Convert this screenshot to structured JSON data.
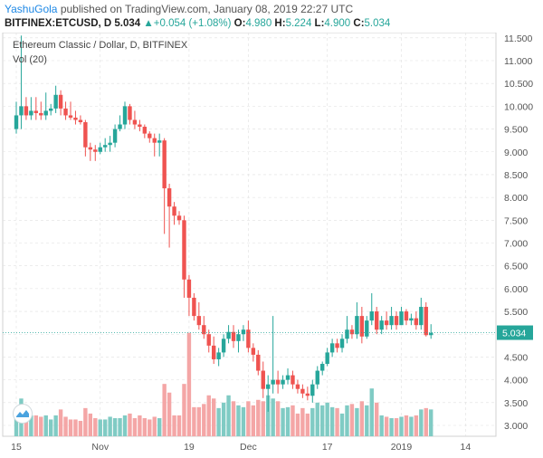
{
  "header": {
    "author": "YashuGola",
    "published_text": " published on TradingView.com, January 08, 2019 22:27 UTC",
    "symbol": "BITFINEX:ETCUSD, D",
    "last": "5.034",
    "arrow": "▲",
    "change": "+0.054 (+1.08%)",
    "o_label": "O:",
    "o_value": "4.980",
    "h_label": "H:",
    "h_value": "5.224",
    "l_label": "L:",
    "l_value": "4.900",
    "c_label": "C:",
    "c_value": "5.034"
  },
  "chart_title": "Ethereum Classic / Dollar, D, BITFINEX",
  "volume_label": "Vol (20)",
  "colors": {
    "up": "#26a69a",
    "down": "#ef5350",
    "up_vol": "#80cbc4",
    "down_vol": "#f4a6a6",
    "price_line": "#26a69a",
    "grid": "#e0e0e0"
  },
  "chart_data": {
    "type": "candlestick",
    "y_ticks": [
      "11.500",
      "11.000",
      "10.500",
      "10.000",
      "9.500",
      "9.000",
      "8.500",
      "8.000",
      "7.500",
      "7.000",
      "6.500",
      "6.000",
      "5.500",
      "5.000",
      "4.500",
      "4.000",
      "3.500",
      "3.000"
    ],
    "ylim": [
      2.9,
      11.6
    ],
    "x_ticks": [
      {
        "label": "15",
        "day": 0
      },
      {
        "label": "Nov",
        "day": 17
      },
      {
        "label": "19",
        "day": 35
      },
      {
        "label": "Dec",
        "day": 47
      },
      {
        "label": "17",
        "day": 63
      },
      {
        "label": "2019",
        "day": 78
      },
      {
        "label": "14",
        "day": 91
      }
    ],
    "x_range": [
      -1,
      97
    ],
    "last_price": "5.034",
    "last_price_value": 5.034,
    "candles": [
      [
        9.5,
        10.1,
        9.4,
        9.8,
        3.32
      ],
      [
        9.8,
        11.55,
        9.5,
        10.0,
        3.59
      ],
      [
        10.0,
        10.2,
        9.7,
        9.8,
        3.3
      ],
      [
        9.8,
        10.2,
        9.7,
        9.9,
        3.22
      ],
      [
        9.9,
        10.2,
        9.7,
        9.85,
        3.22
      ],
      [
        9.85,
        10.1,
        9.7,
        9.8,
        3.19
      ],
      [
        9.8,
        10.3,
        9.7,
        9.9,
        3.22
      ],
      [
        9.9,
        10.05,
        9.8,
        9.95,
        3.13
      ],
      [
        9.95,
        10.45,
        9.85,
        10.25,
        3.22
      ],
      [
        10.25,
        10.35,
        9.8,
        9.95,
        3.35
      ],
      [
        9.95,
        10.1,
        9.7,
        9.8,
        3.19
      ],
      [
        9.8,
        10.1,
        9.7,
        9.75,
        3.13
      ],
      [
        9.75,
        9.9,
        9.6,
        9.7,
        3.13
      ],
      [
        9.7,
        9.8,
        9.6,
        9.65,
        3.1
      ],
      [
        9.65,
        9.7,
        8.9,
        9.1,
        3.38
      ],
      [
        9.1,
        9.2,
        8.8,
        9.05,
        3.26
      ],
      [
        9.05,
        9.15,
        8.8,
        9.0,
        3.16
      ],
      [
        9.0,
        9.2,
        8.95,
        9.1,
        3.13
      ],
      [
        9.1,
        9.3,
        9.0,
        9.15,
        3.13
      ],
      [
        9.15,
        9.35,
        9.0,
        9.2,
        3.19
      ],
      [
        9.2,
        9.6,
        9.1,
        9.5,
        3.16
      ],
      [
        9.5,
        9.8,
        9.45,
        9.6,
        3.16
      ],
      [
        9.6,
        10.1,
        9.5,
        10.0,
        3.22
      ],
      [
        10.0,
        10.05,
        9.6,
        9.7,
        3.26
      ],
      [
        9.7,
        9.9,
        9.5,
        9.6,
        3.16
      ],
      [
        9.6,
        9.7,
        9.45,
        9.55,
        3.22
      ],
      [
        9.55,
        9.6,
        9.3,
        9.4,
        3.16
      ],
      [
        9.4,
        9.45,
        9.2,
        9.3,
        3.13
      ],
      [
        9.3,
        9.4,
        8.9,
        9.2,
        3.19
      ],
      [
        9.2,
        9.4,
        8.9,
        9.25,
        3.16
      ],
      [
        9.25,
        9.3,
        7.2,
        8.2,
        3.91
      ],
      [
        8.2,
        8.3,
        6.9,
        7.8,
        3.72
      ],
      [
        7.8,
        7.9,
        7.4,
        7.6,
        3.22
      ],
      [
        7.6,
        7.7,
        7.4,
        7.5,
        3.22
      ],
      [
        7.5,
        7.6,
        5.8,
        6.2,
        3.91
      ],
      [
        6.2,
        6.3,
        5.4,
        5.8,
        5.03
      ],
      [
        5.8,
        5.9,
        5.3,
        5.4,
        3.4
      ],
      [
        5.4,
        5.7,
        5.1,
        5.2,
        3.4
      ],
      [
        5.2,
        5.4,
        4.9,
        5.0,
        3.47
      ],
      [
        5.0,
        5.1,
        4.6,
        4.75,
        3.66
      ],
      [
        4.75,
        4.95,
        4.35,
        4.45,
        3.59
      ],
      [
        4.45,
        4.7,
        4.3,
        4.6,
        3.38
      ],
      [
        4.6,
        5.0,
        4.5,
        4.9,
        3.5
      ],
      [
        4.9,
        5.2,
        4.8,
        5.05,
        3.66
      ],
      [
        5.05,
        5.2,
        4.7,
        4.85,
        3.53
      ],
      [
        4.85,
        5.1,
        4.6,
        5.0,
        3.44
      ],
      [
        5.0,
        5.2,
        4.85,
        5.1,
        3.4
      ],
      [
        5.1,
        5.3,
        4.6,
        4.7,
        3.53
      ],
      [
        4.7,
        4.8,
        4.4,
        4.55,
        3.44
      ],
      [
        4.55,
        4.65,
        4.1,
        4.2,
        3.56
      ],
      [
        4.2,
        4.4,
        3.6,
        3.8,
        3.53
      ],
      [
        3.8,
        4.1,
        3.3,
        3.9,
        3.66
      ],
      [
        3.9,
        5.4,
        3.7,
        4.0,
        3.59
      ],
      [
        4.0,
        4.2,
        3.7,
        3.9,
        3.53
      ],
      [
        3.9,
        4.1,
        3.8,
        4.0,
        3.38
      ],
      [
        4.0,
        4.25,
        3.9,
        4.1,
        3.4
      ],
      [
        4.1,
        4.2,
        3.8,
        3.9,
        3.44
      ],
      [
        3.9,
        4.0,
        3.7,
        3.8,
        3.26
      ],
      [
        3.8,
        3.9,
        3.6,
        3.7,
        3.38
      ],
      [
        3.7,
        3.85,
        3.55,
        3.65,
        3.26
      ],
      [
        3.65,
        4.0,
        3.5,
        3.9,
        3.38
      ],
      [
        3.9,
        4.3,
        3.8,
        4.2,
        3.5
      ],
      [
        4.2,
        4.4,
        4.1,
        4.35,
        3.44
      ],
      [
        4.35,
        4.7,
        4.3,
        4.6,
        3.5
      ],
      [
        4.6,
        4.9,
        4.5,
        4.8,
        3.4
      ],
      [
        4.8,
        4.9,
        4.6,
        4.7,
        3.38
      ],
      [
        4.7,
        5.0,
        4.6,
        4.9,
        3.26
      ],
      [
        4.9,
        5.4,
        4.8,
        5.1,
        3.44
      ],
      [
        5.1,
        5.2,
        4.9,
        5.0,
        3.47
      ],
      [
        5.0,
        5.7,
        4.9,
        5.4,
        3.38
      ],
      [
        5.4,
        5.6,
        4.8,
        4.95,
        3.53
      ],
      [
        4.95,
        5.4,
        4.9,
        5.3,
        3.44
      ],
      [
        5.3,
        5.9,
        5.2,
        5.5,
        3.81
      ],
      [
        5.5,
        5.6,
        5.0,
        5.1,
        3.5
      ],
      [
        5.1,
        5.4,
        5.0,
        5.3,
        3.22
      ],
      [
        5.3,
        5.5,
        5.1,
        5.2,
        3.19
      ],
      [
        5.2,
        5.6,
        5.1,
        5.4,
        3.16
      ],
      [
        5.4,
        5.5,
        5.1,
        5.2,
        3.16
      ],
      [
        5.2,
        5.6,
        5.2,
        5.5,
        3.19
      ],
      [
        5.5,
        5.55,
        5.2,
        5.3,
        3.22
      ],
      [
        5.3,
        5.45,
        5.2,
        5.35,
        3.19
      ],
      [
        5.35,
        5.5,
        5.1,
        5.2,
        3.22
      ],
      [
        5.2,
        5.8,
        5.1,
        5.6,
        3.35
      ],
      [
        5.6,
        5.7,
        4.95,
        4.98,
        3.38
      ],
      [
        4.98,
        5.22,
        4.9,
        5.03,
        3.35
      ]
    ]
  }
}
